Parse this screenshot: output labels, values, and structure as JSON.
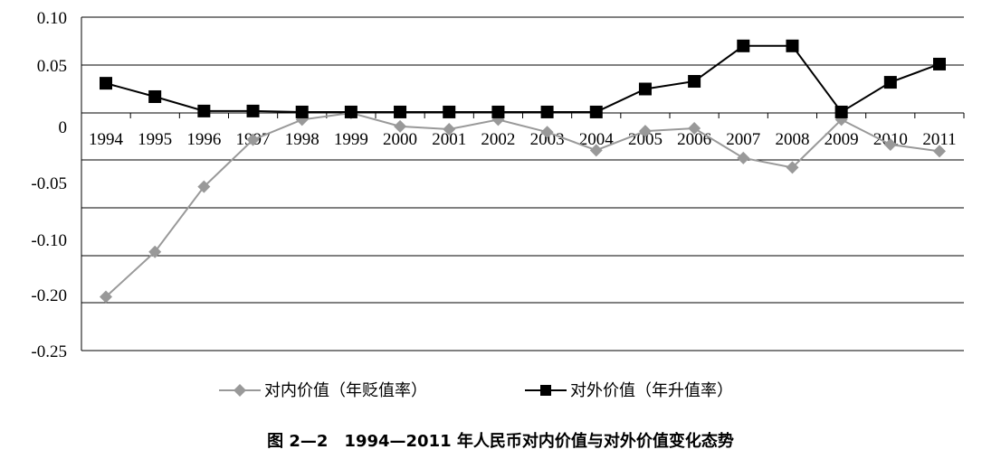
{
  "caption": "图 2—2　1994—2011 年人民币对内价值与对外价值变化态势",
  "chart_data": {
    "type": "line",
    "categories": [
      "1994",
      "1995",
      "1996",
      "1997",
      "1998",
      "1999",
      "2000",
      "2001",
      "2002",
      "2003",
      "2004",
      "2005",
      "2006",
      "2007",
      "2008",
      "2009",
      "2010",
      "2011"
    ],
    "y_tick_labels": [
      "0.10",
      "0.05",
      "0",
      "-0.05",
      "-0.10",
      "-0.20",
      "-0.25"
    ],
    "grid": "horizontal",
    "legend_position": "bottom",
    "series": [
      {
        "name": "对内价值（年贬值率）",
        "color": "#999999",
        "marker": "diamond",
        "values": [
          -0.192,
          -0.145,
          -0.077,
          -0.028,
          -0.007,
          0.0,
          -0.014,
          -0.017,
          -0.007,
          -0.02,
          -0.039,
          -0.019,
          -0.016,
          -0.047,
          -0.057,
          -0.007,
          -0.033,
          -0.04
        ]
      },
      {
        "name": "对外价值（年升值率）",
        "color": "#000000",
        "marker": "square",
        "values": [
          0.031,
          0.017,
          0.002,
          0.002,
          0.001,
          0.001,
          0.001,
          0.001,
          0.001,
          0.001,
          0.001,
          0.025,
          0.033,
          0.07,
          0.07,
          0.001,
          0.032,
          0.051
        ]
      }
    ]
  }
}
